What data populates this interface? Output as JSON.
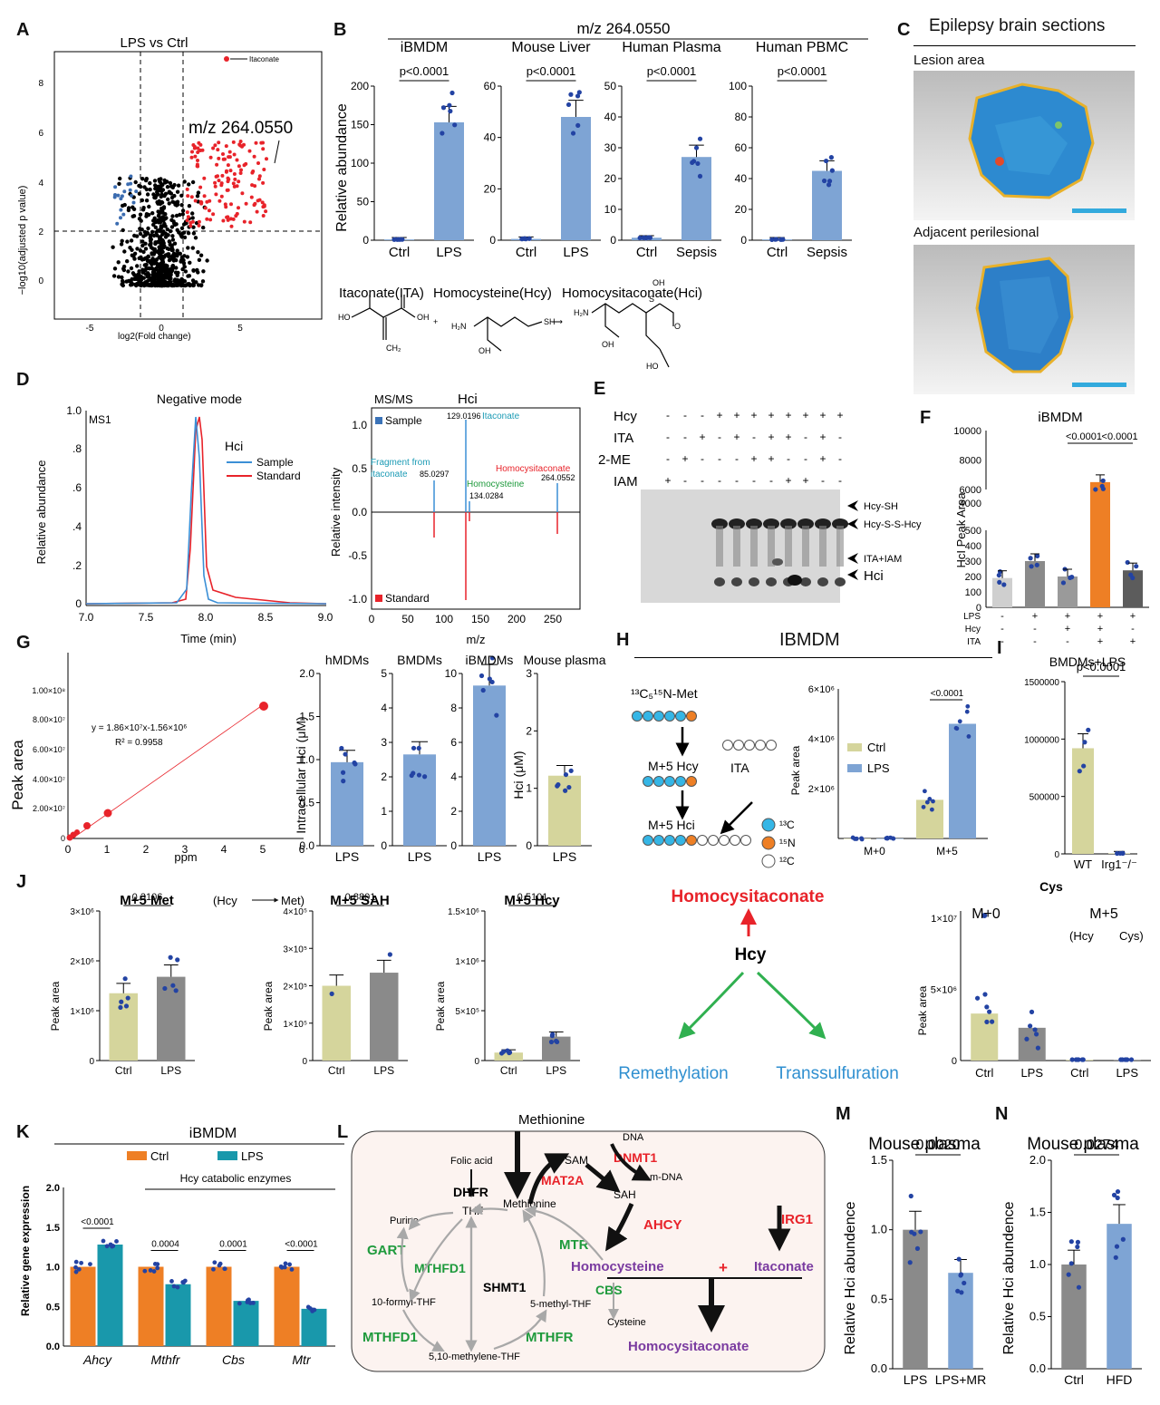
{
  "panels": {
    "A": {
      "label": "A",
      "title": "LPS vs Ctrl",
      "xlabel": "log2(Fold change)",
      "ylabel": "−log10(adjusted p value)",
      "annot_itaconate": "Itaconate",
      "annot_mz": "m/z 264.0550",
      "xticks": [
        "-5",
        "0",
        "5"
      ],
      "yticks": [
        "0",
        "2",
        "4",
        "6",
        "8"
      ]
    },
    "B": {
      "label": "B",
      "header": "m/z 264.0550",
      "ylabel": "Relative abundance",
      "charts": [
        {
          "title": "iBMDM",
          "cats": [
            "Ctrl",
            "LPS"
          ],
          "values": [
            1,
            153
          ],
          "ymax": 200,
          "yticks": [
            "0",
            "50",
            "100",
            "150",
            "200"
          ],
          "p": "p<0.0001"
        },
        {
          "title": "Mouse Liver",
          "cats": [
            "Ctrl",
            "LPS"
          ],
          "values": [
            0.5,
            48
          ],
          "ymax": 60,
          "yticks": [
            "0",
            "20",
            "40",
            "60"
          ],
          "p": "p<0.0001"
        },
        {
          "title": "Human Plasma",
          "cats": [
            "Ctrl",
            "Sepsis"
          ],
          "values": [
            0.8,
            27
          ],
          "ymax": 50,
          "yticks": [
            "0",
            "10",
            "20",
            "30",
            "40",
            "50"
          ],
          "p": "p<0.0001"
        },
        {
          "title": "Human PBMC",
          "cats": [
            "Ctrl",
            "Sepsis"
          ],
          "values": [
            0.5,
            45
          ],
          "ymax": 100,
          "yticks": [
            "0",
            "20",
            "40",
            "60",
            "80",
            "100"
          ],
          "p": "p<0.0001"
        }
      ],
      "chem_labels": [
        "Itaconate(ITA)",
        "Homocysteine(Hcy)",
        "Homocysitaconate(Hci)"
      ]
    },
    "C": {
      "label": "C",
      "title": "Epilepsy brain sections",
      "sub1": "Lesion area",
      "sub2": "Adjacent perilesional"
    },
    "D": {
      "label": "D",
      "title": "Negative mode",
      "ms1": "MS1",
      "legend_title": "Hci",
      "legend": [
        "Sample",
        "Standard"
      ],
      "xlabel": "Time (min)",
      "ylabel": "Relative abundance",
      "xticks": [
        "7.0",
        "7.5",
        "8.0",
        "8.5",
        "9.0"
      ],
      "yticks": [
        "0",
        ".2",
        ".4",
        ".6",
        ".8",
        "1.0"
      ],
      "msms": {
        "title": "MS/MS",
        "name": "Hci",
        "legend": [
          "Sample",
          "Standard"
        ],
        "ylabel": "Relative intensity",
        "xlabel": "m/z",
        "xticks": [
          "0",
          "50",
          "100",
          "150",
          "200",
          "250"
        ],
        "yticks": [
          "-1.0",
          "-0.5",
          "0.0",
          "0.5",
          "1.0"
        ],
        "peaks": [
          {
            "mz": "129.0196",
            "name": "Itaconate"
          },
          {
            "mz": "85.0297",
            "name": "Fragment from itaconate"
          },
          {
            "mz": "134.0284",
            "name": "Homocysteine"
          },
          {
            "mz": "264.0552",
            "name": "Homocysitaconate"
          }
        ]
      }
    },
    "E": {
      "label": "E",
      "rows": [
        "Hcy",
        "ITA",
        "2-ME",
        "IAM"
      ],
      "arrows": [
        "Hcy-SH",
        "Hcy-S-S-Hcy",
        "ITA+IAM",
        "Hci"
      ]
    },
    "F": {
      "label": "F",
      "title": "iBMDM",
      "ylabel": "HcI Peak Area",
      "values": [
        190,
        300,
        200,
        6500,
        240
      ],
      "p1": "<0.0001",
      "p2": "<0.0001",
      "rows": [
        "LPS",
        "Hcy",
        "ITA"
      ],
      "yticks_top": [
        "6000",
        "8000",
        "10000"
      ],
      "yticks_bot": [
        "0",
        "100",
        "200",
        "300",
        "400",
        "500"
      ],
      "ytick_mid": "4000"
    },
    "G": {
      "label": "G",
      "ylabel": "Peak area",
      "xlabel": "ppm",
      "equation": "y = 1.86×10⁷x-1.56×10⁶",
      "r2": "R² = 0.9958",
      "yticks": [
        "0",
        "2.00×10⁷",
        "4.00×10⁷",
        "6.00×10⁷",
        "8.00×10⁷",
        "1.00×10⁸"
      ],
      "xticks": [
        "0",
        "1",
        "2",
        "3",
        "4",
        "5",
        "6"
      ],
      "bars_ylabel": "Intracellular Hci (μM)",
      "plasma_ylabel": "Hci (μM)",
      "bars": [
        {
          "title": "hMDMs",
          "value": 0.97,
          "ymax": 2,
          "yticks": [
            "0.0",
            "0.5",
            "1.0",
            "1.5",
            "2.0"
          ]
        },
        {
          "title": "BMDMs",
          "value": 2.65,
          "ymax": 5,
          "yticks": [
            "0",
            "1",
            "2",
            "3",
            "4",
            "5"
          ]
        },
        {
          "title": "iBMDMs",
          "value": 9.3,
          "ymax": 10,
          "yticks": [
            "0",
            "2",
            "4",
            "6",
            "8",
            "10"
          ]
        },
        {
          "title": "Mouse plasma",
          "value": 1.22,
          "ymax": 3,
          "yticks": [
            "0",
            "1",
            "2",
            "3"
          ]
        }
      ],
      "cat": "LPS"
    },
    "H": {
      "label": "H",
      "title": "IBMDM",
      "met": "¹³C₅¹⁵N-Met",
      "hcy": "M+5 Hcy",
      "hci": "M+5 Hci",
      "ita": "ITA",
      "legend": [
        "¹³C",
        "¹⁵N",
        "¹²C"
      ],
      "chart": {
        "series": [
          "Ctrl",
          "LPS"
        ],
        "cats": [
          "M+0",
          "M+5"
        ],
        "ctrl": [
          0,
          1.55
        ],
        "lps": [
          0,
          4.6
        ],
        "p": "<0.0001",
        "ylabel": "Peak area",
        "yticks": [
          "2×10⁶",
          "4×10⁶",
          "6×10⁶"
        ]
      }
    },
    "I": {
      "label": "I",
      "title": "BMDMs+LPS",
      "p": "p<0.0001",
      "cats": [
        "WT",
        "Irg1⁻/⁻"
      ],
      "values": [
        920000,
        5000
      ],
      "yticks": [
        "0",
        "500000",
        "1000000",
        "1500000"
      ]
    },
    "J": {
      "label": "J",
      "charts": [
        {
          "title": "M+5 Met",
          "sub": "(Hcy",
          "sub2": "Met)",
          "values": [
            1.35,
            1.68
          ],
          "p": "0.3106",
          "yticks": [
            "1×10⁶",
            "2×10⁶",
            "3×10⁶"
          ],
          "ymax": 3
        },
        {
          "title": "M+5 SAH",
          "values": [
            2.0,
            2.35
          ],
          "p": "0.8801",
          "yticks": [
            "1×10⁵",
            "2×10⁵",
            "3×10⁵",
            "4×10⁵"
          ],
          "ymax": 4
        },
        {
          "title": "M+5 Hcy",
          "values": [
            0.08,
            0.24
          ],
          "p": "0.5101",
          "yticks": [
            "0",
            "5×10⁵",
            "1×10⁶",
            "1.5×10⁶"
          ],
          "ymax": 1.5
        }
      ],
      "cats": [
        "Ctrl",
        "LPS"
      ],
      "ylabel": "Peak area",
      "scheme": {
        "hci": "Homocysitaconate",
        "hcy": "Hcy",
        "remeth": "Remethylation",
        "trans": "Transsulfuration"
      },
      "cys": {
        "title": "Cys",
        "m0": "M+0",
        "m5": "M+5",
        "sub": "(Hcy",
        "sub2": "Cys)",
        "values": [
          3.3,
          2.3,
          0.05,
          0.05
        ],
        "yticks": [
          "0",
          "5×10⁶",
          "1×10⁷"
        ],
        "cats": [
          "Ctrl",
          "LPS",
          "Ctrl",
          "LPS"
        ]
      }
    },
    "K": {
      "label": "K",
      "title": "iBMDM",
      "legend": [
        "Ctrl",
        "LPS"
      ],
      "subtitle": "Hcy catabolic enzymes",
      "ylabel": "Relative gene expression",
      "genes": [
        "Ahcy",
        "Mthfr",
        "Cbs",
        "Mtr"
      ],
      "ctrl": [
        1.0,
        1.0,
        1.0,
        1.0
      ],
      "lps": [
        1.28,
        0.78,
        0.57,
        0.47
      ],
      "p": [
        "<0.0001",
        "0.0004",
        "0.0001",
        "<0.0001"
      ],
      "yticks": [
        "0.0",
        "0.5",
        "1.0",
        "1.5",
        "2.0"
      ]
    },
    "L": {
      "label": "L",
      "methionine_top": "Methionine",
      "dna": "DNA",
      "sam": "SAM",
      "dnmt1": "DNMT1",
      "mdna": "m-DNA",
      "folic": "Folic acid",
      "mat2a": "MAT2A",
      "dhfr": "DHFR",
      "sah": "SAH",
      "methionine": "Methionine",
      "thf": "THF",
      "purine": "Purine",
      "ahcy": "AHCY",
      "irg1": "IRG1",
      "gart": "GART",
      "mtr": "MTR",
      "mthfd1a": "MTHFD1",
      "shmt1": "SHMT1",
      "homocysteine": "Homocysteine",
      "plus": "+",
      "itaconate": "Itaconate",
      "cbs": "CBS",
      "formyl": "10-formyl-THF",
      "methyl": "5-methyl-THF",
      "cysteine": "Cysteine",
      "mthfd1b": "MTHFD1",
      "mthfr": "MTHFR",
      "methylene": "5,10-methylene-THF",
      "hci": "Homocysitaconate"
    },
    "M": {
      "label": "M",
      "title": "Mouse plasma",
      "ylabel": "Relative Hci abundence",
      "cats": [
        "LPS",
        "LPS+MR"
      ],
      "values": [
        1.0,
        0.69
      ],
      "p": "0.0020",
      "yticks": [
        "0.0",
        "0.5",
        "1.0",
        "1.5"
      ]
    },
    "N": {
      "label": "N",
      "title": "Mouse plasma",
      "ylabel": "Relative Hci abundence",
      "cats": [
        "Ctrl",
        "HFD"
      ],
      "values": [
        1.0,
        1.39
      ],
      "p": "0.0274",
      "yticks": [
        "0.0",
        "0.5",
        "1.0",
        "1.5",
        "2.0"
      ]
    }
  },
  "colors": {
    "blue": "#7ea4d4",
    "khaki": "#d5d59c",
    "gray": "#8a8a8a",
    "orange": "#ee7f25",
    "teal": "#1998ab",
    "red": "#e8232a",
    "green": "#1e9a3c",
    "purple": "#7a3ba0",
    "skyblue": "#2f8fd0"
  }
}
